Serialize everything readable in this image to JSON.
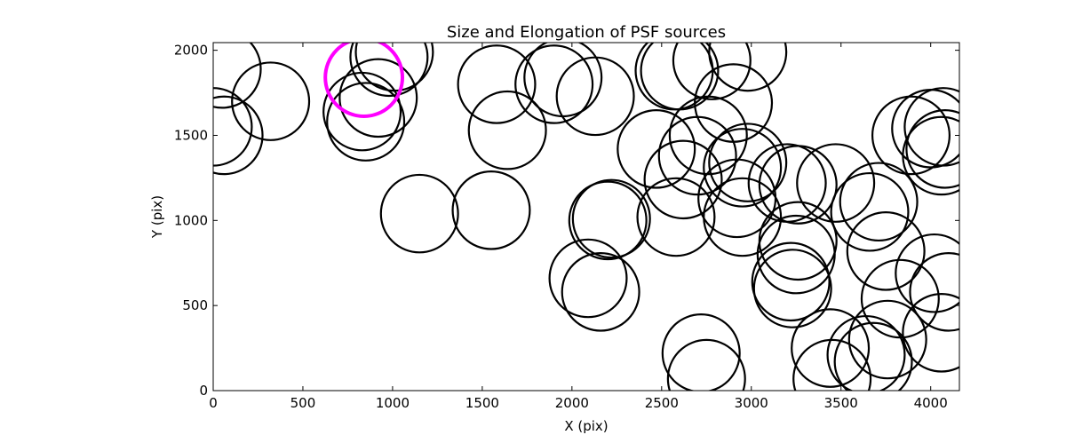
{
  "chart_data": {
    "type": "scatter",
    "marker": "ellipse",
    "title": "Size and Elongation of PSF sources",
    "xlabel": "X (pix)",
    "ylabel": "Y (pix)",
    "xlim": [
      0,
      4160
    ],
    "ylim": [
      0,
      2045
    ],
    "xticks": [
      0,
      500,
      1000,
      1500,
      2000,
      2500,
      3000,
      3500,
      4000
    ],
    "yticks": [
      0,
      500,
      1000,
      1500,
      2000
    ],
    "radius_pix": 215,
    "colors": {
      "default": "#000000",
      "highlight": "#ff00ff"
    },
    "sources": [
      {
        "x": 50,
        "y": 1890
      },
      {
        "x": 0,
        "y": 1550
      },
      {
        "x": 60,
        "y": 1500
      },
      {
        "x": 320,
        "y": 1700
      },
      {
        "x": 830,
        "y": 1640
      },
      {
        "x": 850,
        "y": 1580
      },
      {
        "x": 920,
        "y": 1720
      },
      {
        "x": 980,
        "y": 1960
      },
      {
        "x": 1010,
        "y": 1990
      },
      {
        "x": 1150,
        "y": 1040
      },
      {
        "x": 1550,
        "y": 1060
      },
      {
        "x": 1580,
        "y": 1800
      },
      {
        "x": 1640,
        "y": 1530
      },
      {
        "x": 1900,
        "y": 1800
      },
      {
        "x": 1950,
        "y": 1840
      },
      {
        "x": 2130,
        "y": 1730
      },
      {
        "x": 2090,
        "y": 660
      },
      {
        "x": 2160,
        "y": 580
      },
      {
        "x": 2200,
        "y": 1000
      },
      {
        "x": 2220,
        "y": 1010
      },
      {
        "x": 2470,
        "y": 1420
      },
      {
        "x": 2570,
        "y": 1880
      },
      {
        "x": 2600,
        "y": 1880
      },
      {
        "x": 2580,
        "y": 1020
      },
      {
        "x": 2620,
        "y": 1240
      },
      {
        "x": 2700,
        "y": 1380
      },
      {
        "x": 2760,
        "y": 1500
      },
      {
        "x": 2780,
        "y": 1940
      },
      {
        "x": 2900,
        "y": 1690
      },
      {
        "x": 2980,
        "y": 1990
      },
      {
        "x": 2920,
        "y": 1130
      },
      {
        "x": 2950,
        "y": 1020
      },
      {
        "x": 2950,
        "y": 1310
      },
      {
        "x": 2980,
        "y": 1340
      },
      {
        "x": 2720,
        "y": 220
      },
      {
        "x": 2750,
        "y": 70
      },
      {
        "x": 3200,
        "y": 1220
      },
      {
        "x": 3260,
        "y": 1210
      },
      {
        "x": 3260,
        "y": 880
      },
      {
        "x": 3250,
        "y": 800
      },
      {
        "x": 3220,
        "y": 640
      },
      {
        "x": 3230,
        "y": 600
      },
      {
        "x": 3440,
        "y": 250
      },
      {
        "x": 3450,
        "y": 70
      },
      {
        "x": 3470,
        "y": 1220
      },
      {
        "x": 3660,
        "y": 1050
      },
      {
        "x": 3710,
        "y": 1110
      },
      {
        "x": 3750,
        "y": 820
      },
      {
        "x": 3640,
        "y": 210
      },
      {
        "x": 3680,
        "y": 170
      },
      {
        "x": 3760,
        "y": 300
      },
      {
        "x": 3830,
        "y": 540
      },
      {
        "x": 3890,
        "y": 1500
      },
      {
        "x": 4000,
        "y": 1540
      },
      {
        "x": 4070,
        "y": 1550
      },
      {
        "x": 4080,
        "y": 1420
      },
      {
        "x": 4060,
        "y": 1380
      },
      {
        "x": 4020,
        "y": 690
      },
      {
        "x": 4100,
        "y": 580
      },
      {
        "x": 4060,
        "y": 340
      }
    ],
    "highlight_sources": [
      {
        "x": 840,
        "y": 1840
      }
    ]
  }
}
